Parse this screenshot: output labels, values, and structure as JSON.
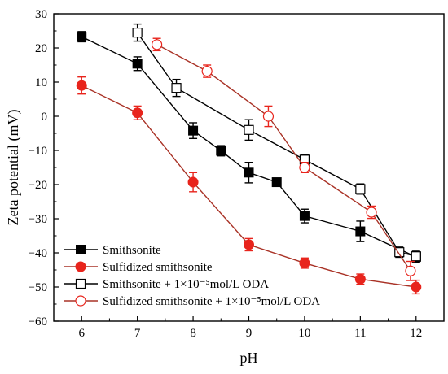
{
  "chart_data": {
    "type": "line",
    "xlabel": "pH",
    "ylabel": "Zeta potential (mV)",
    "xlim": [
      5.5,
      12.5
    ],
    "ylim": [
      -60,
      30
    ],
    "xticks": [
      6,
      7,
      8,
      9,
      10,
      11,
      12
    ],
    "yticks": [
      30,
      20,
      10,
      0,
      -10,
      -20,
      -30,
      -40,
      -50,
      -60
    ],
    "grid": false,
    "legend_position": "bottom-left",
    "series": [
      {
        "name": "Smithsonite",
        "marker": "filled-square",
        "color": "#000000",
        "points": [
          {
            "x": 6,
            "y": 23.3,
            "err": 1.5
          },
          {
            "x": 7,
            "y": 15.4,
            "err": 2.0
          },
          {
            "x": 8,
            "y": -4.2,
            "err": 2.3
          },
          {
            "x": 8.5,
            "y": -10.1,
            "err": 1.5
          },
          {
            "x": 9,
            "y": -16.5,
            "err": 3.0
          },
          {
            "x": 9.5,
            "y": -19.3,
            "err": 1.0
          },
          {
            "x": 10,
            "y": -29.2,
            "err": 2.0
          },
          {
            "x": 11,
            "y": -33.7,
            "err": 3.0
          },
          {
            "x": 12,
            "y": -41.2,
            "err": 1.5
          }
        ]
      },
      {
        "name": "Sulfidized smithsonite",
        "marker": "filled-circle",
        "color": "#e8241c",
        "line_color": "#a93226",
        "points": [
          {
            "x": 6,
            "y": 9.0,
            "err": 2.5
          },
          {
            "x": 7,
            "y": 1.0,
            "err": 2.0
          },
          {
            "x": 8,
            "y": -19.3,
            "err": 2.8
          },
          {
            "x": 9,
            "y": -37.6,
            "err": 1.8
          },
          {
            "x": 10,
            "y": -43.0,
            "err": 1.5
          },
          {
            "x": 11,
            "y": -47.7,
            "err": 1.5
          },
          {
            "x": 12,
            "y": -50.0,
            "err": 2.0
          }
        ]
      },
      {
        "name": "Smithsonite + 1×10⁻⁵mol/L ODA",
        "marker": "open-square",
        "color": "#000000",
        "points": [
          {
            "x": 7,
            "y": 24.5,
            "err": 2.5
          },
          {
            "x": 7.7,
            "y": 8.3,
            "err": 2.5
          },
          {
            "x": 9,
            "y": -4.0,
            "err": 3.0
          },
          {
            "x": 10,
            "y": -12.7,
            "err": 1.5
          },
          {
            "x": 11,
            "y": -21.3,
            "err": 1.5
          },
          {
            "x": 11.7,
            "y": -39.8,
            "err": 1.5
          },
          {
            "x": 12,
            "y": -41.0,
            "err": 1.5
          }
        ]
      },
      {
        "name": "Sulfidized smithsonite + 1×10⁻⁵mol/L ODA",
        "marker": "open-circle",
        "color": "#e8241c",
        "line_color": "#a93226",
        "points": [
          {
            "x": 7.35,
            "y": 21.0,
            "err": 1.8
          },
          {
            "x": 8.25,
            "y": 13.2,
            "err": 1.8
          },
          {
            "x": 9.35,
            "y": 0.0,
            "err": 3.0
          },
          {
            "x": 10,
            "y": -15.0,
            "err": 1.5
          },
          {
            "x": 11.2,
            "y": -28.1,
            "err": 1.8
          },
          {
            "x": 11.9,
            "y": -45.3,
            "err": 2.8
          }
        ]
      }
    ]
  }
}
